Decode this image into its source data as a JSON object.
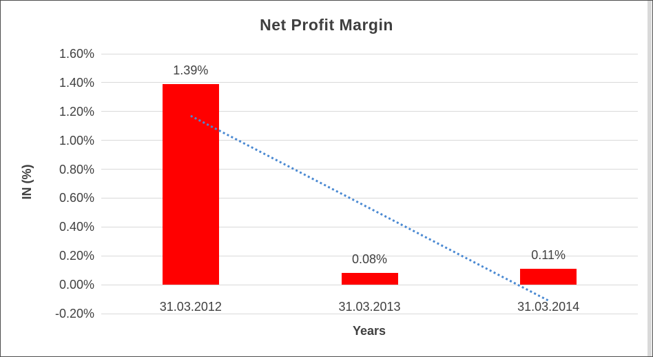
{
  "window": {
    "background_color": "#ffffff",
    "frame_border_color": "#4d4d4d",
    "right_strip_color": "#d9d9d9"
  },
  "chart_data": {
    "type": "bar",
    "title": "Net Profit Margin",
    "xlabel": "Years",
    "ylabel": "IN (%)",
    "categories": [
      "31.03.2012",
      "31.03.2013",
      "31.03.2014"
    ],
    "values": [
      1.39,
      0.08,
      0.11
    ],
    "value_labels": [
      "1.39%",
      "0.08%",
      "0.11%"
    ],
    "unit": "percent",
    "ylim": [
      -0.2,
      1.6
    ],
    "ytick_step": 0.2,
    "yticks": [
      "1.60%",
      "1.40%",
      "1.20%",
      "1.00%",
      "0.80%",
      "0.60%",
      "0.40%",
      "0.20%",
      "0.00%",
      "-0.20%"
    ],
    "ytick_values": [
      1.6,
      1.4,
      1.2,
      1.0,
      0.8,
      0.6,
      0.4,
      0.2,
      0.0,
      -0.2
    ],
    "grid": true,
    "legend": "none",
    "bar_color": "#ff0000",
    "gridline_color": "#d9d9d9",
    "text_color": "#404040",
    "title_color": "#3f3f3f",
    "trendline": {
      "type": "linear",
      "style": "dotted",
      "color": "#4a89d2",
      "start_value": 1.17,
      "end_value": -0.11,
      "spans_categories": [
        "31.03.2012",
        "31.03.2014"
      ]
    }
  }
}
